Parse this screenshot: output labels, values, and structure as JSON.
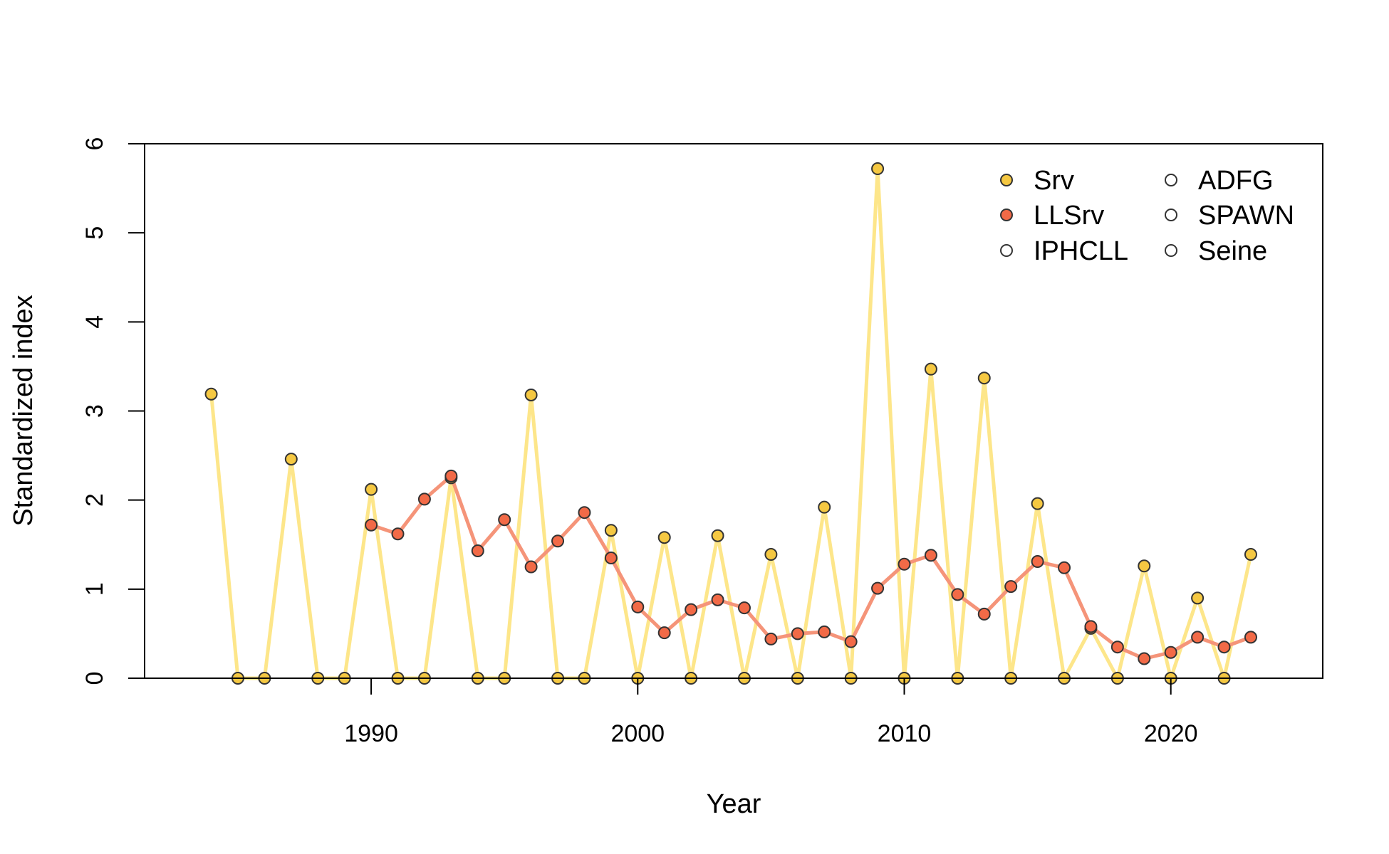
{
  "chart_data": {
    "type": "line",
    "title": "",
    "xlabel": "Year",
    "ylabel": "Standardized index",
    "xlim": [
      1981.5,
      2025.7
    ],
    "ylim": [
      0,
      6
    ],
    "x_ticks": [
      1990,
      2000,
      2010,
      2020
    ],
    "y_ticks": [
      0,
      1,
      2,
      3,
      4,
      5,
      6
    ],
    "grid": false,
    "legend_position": "top-right",
    "legend_columns": 2,
    "series": [
      {
        "name": "Srv",
        "line_color": "#fde68a",
        "point_color": "#f5c842",
        "points": [
          [
            1984,
            3.19
          ],
          [
            1985,
            0
          ],
          [
            1986,
            0
          ],
          [
            1987,
            2.46
          ],
          [
            1988,
            0
          ],
          [
            1989,
            0
          ],
          [
            1990,
            2.12
          ],
          [
            1991,
            0
          ],
          [
            1992,
            0
          ],
          [
            1993,
            2.25
          ],
          [
            1994,
            0
          ],
          [
            1995,
            0
          ],
          [
            1996,
            3.18
          ],
          [
            1997,
            0
          ],
          [
            1998,
            0
          ],
          [
            1999,
            1.66
          ],
          [
            2000,
            0
          ],
          [
            2001,
            1.58
          ],
          [
            2002,
            0
          ],
          [
            2003,
            1.6
          ],
          [
            2004,
            0
          ],
          [
            2005,
            1.39
          ],
          [
            2006,
            0
          ],
          [
            2007,
            1.92
          ],
          [
            2008,
            0
          ],
          [
            2009,
            5.72
          ],
          [
            2010,
            0
          ],
          [
            2011,
            3.47
          ],
          [
            2012,
            0
          ],
          [
            2013,
            3.37
          ],
          [
            2014,
            0
          ],
          [
            2015,
            1.96
          ],
          [
            2016,
            0
          ],
          [
            2017,
            0.56
          ],
          [
            2018,
            0
          ],
          [
            2019,
            1.26
          ],
          [
            2020,
            0
          ],
          [
            2021,
            0.9
          ],
          [
            2022,
            0
          ],
          [
            2023,
            1.39
          ]
        ]
      },
      {
        "name": "LLSrv",
        "line_color": "#f59479",
        "point_color": "#f26a47",
        "points": [
          [
            1990,
            1.72
          ],
          [
            1991,
            1.62
          ],
          [
            1992,
            2.01
          ],
          [
            1993,
            2.27
          ],
          [
            1994,
            1.43
          ],
          [
            1995,
            1.78
          ],
          [
            1996,
            1.25
          ],
          [
            1997,
            1.54
          ],
          [
            1998,
            1.86
          ],
          [
            1999,
            1.35
          ],
          [
            2000,
            0.8
          ],
          [
            2001,
            0.51
          ],
          [
            2002,
            0.77
          ],
          [
            2003,
            0.88
          ],
          [
            2004,
            0.79
          ],
          [
            2005,
            0.44
          ],
          [
            2006,
            0.5
          ],
          [
            2007,
            0.52
          ],
          [
            2008,
            0.41
          ],
          [
            2009,
            1.01
          ],
          [
            2010,
            1.28
          ],
          [
            2011,
            1.38
          ],
          [
            2012,
            0.94
          ],
          [
            2013,
            0.72
          ],
          [
            2014,
            1.03
          ],
          [
            2015,
            1.31
          ],
          [
            2016,
            1.24
          ],
          [
            2017,
            0.58
          ],
          [
            2018,
            0.35
          ],
          [
            2019,
            0.22
          ],
          [
            2020,
            0.29
          ],
          [
            2021,
            0.46
          ],
          [
            2022,
            0.35
          ],
          [
            2023,
            0.46
          ]
        ]
      },
      {
        "name": "IPHCLL",
        "line_color": "none",
        "point_color": "none",
        "points": []
      },
      {
        "name": "ADFG",
        "line_color": "none",
        "point_color": "none",
        "points": []
      },
      {
        "name": "SPAWN",
        "line_color": "none",
        "point_color": "none",
        "points": []
      },
      {
        "name": "Seine",
        "line_color": "none",
        "point_color": "none",
        "points": []
      }
    ]
  }
}
